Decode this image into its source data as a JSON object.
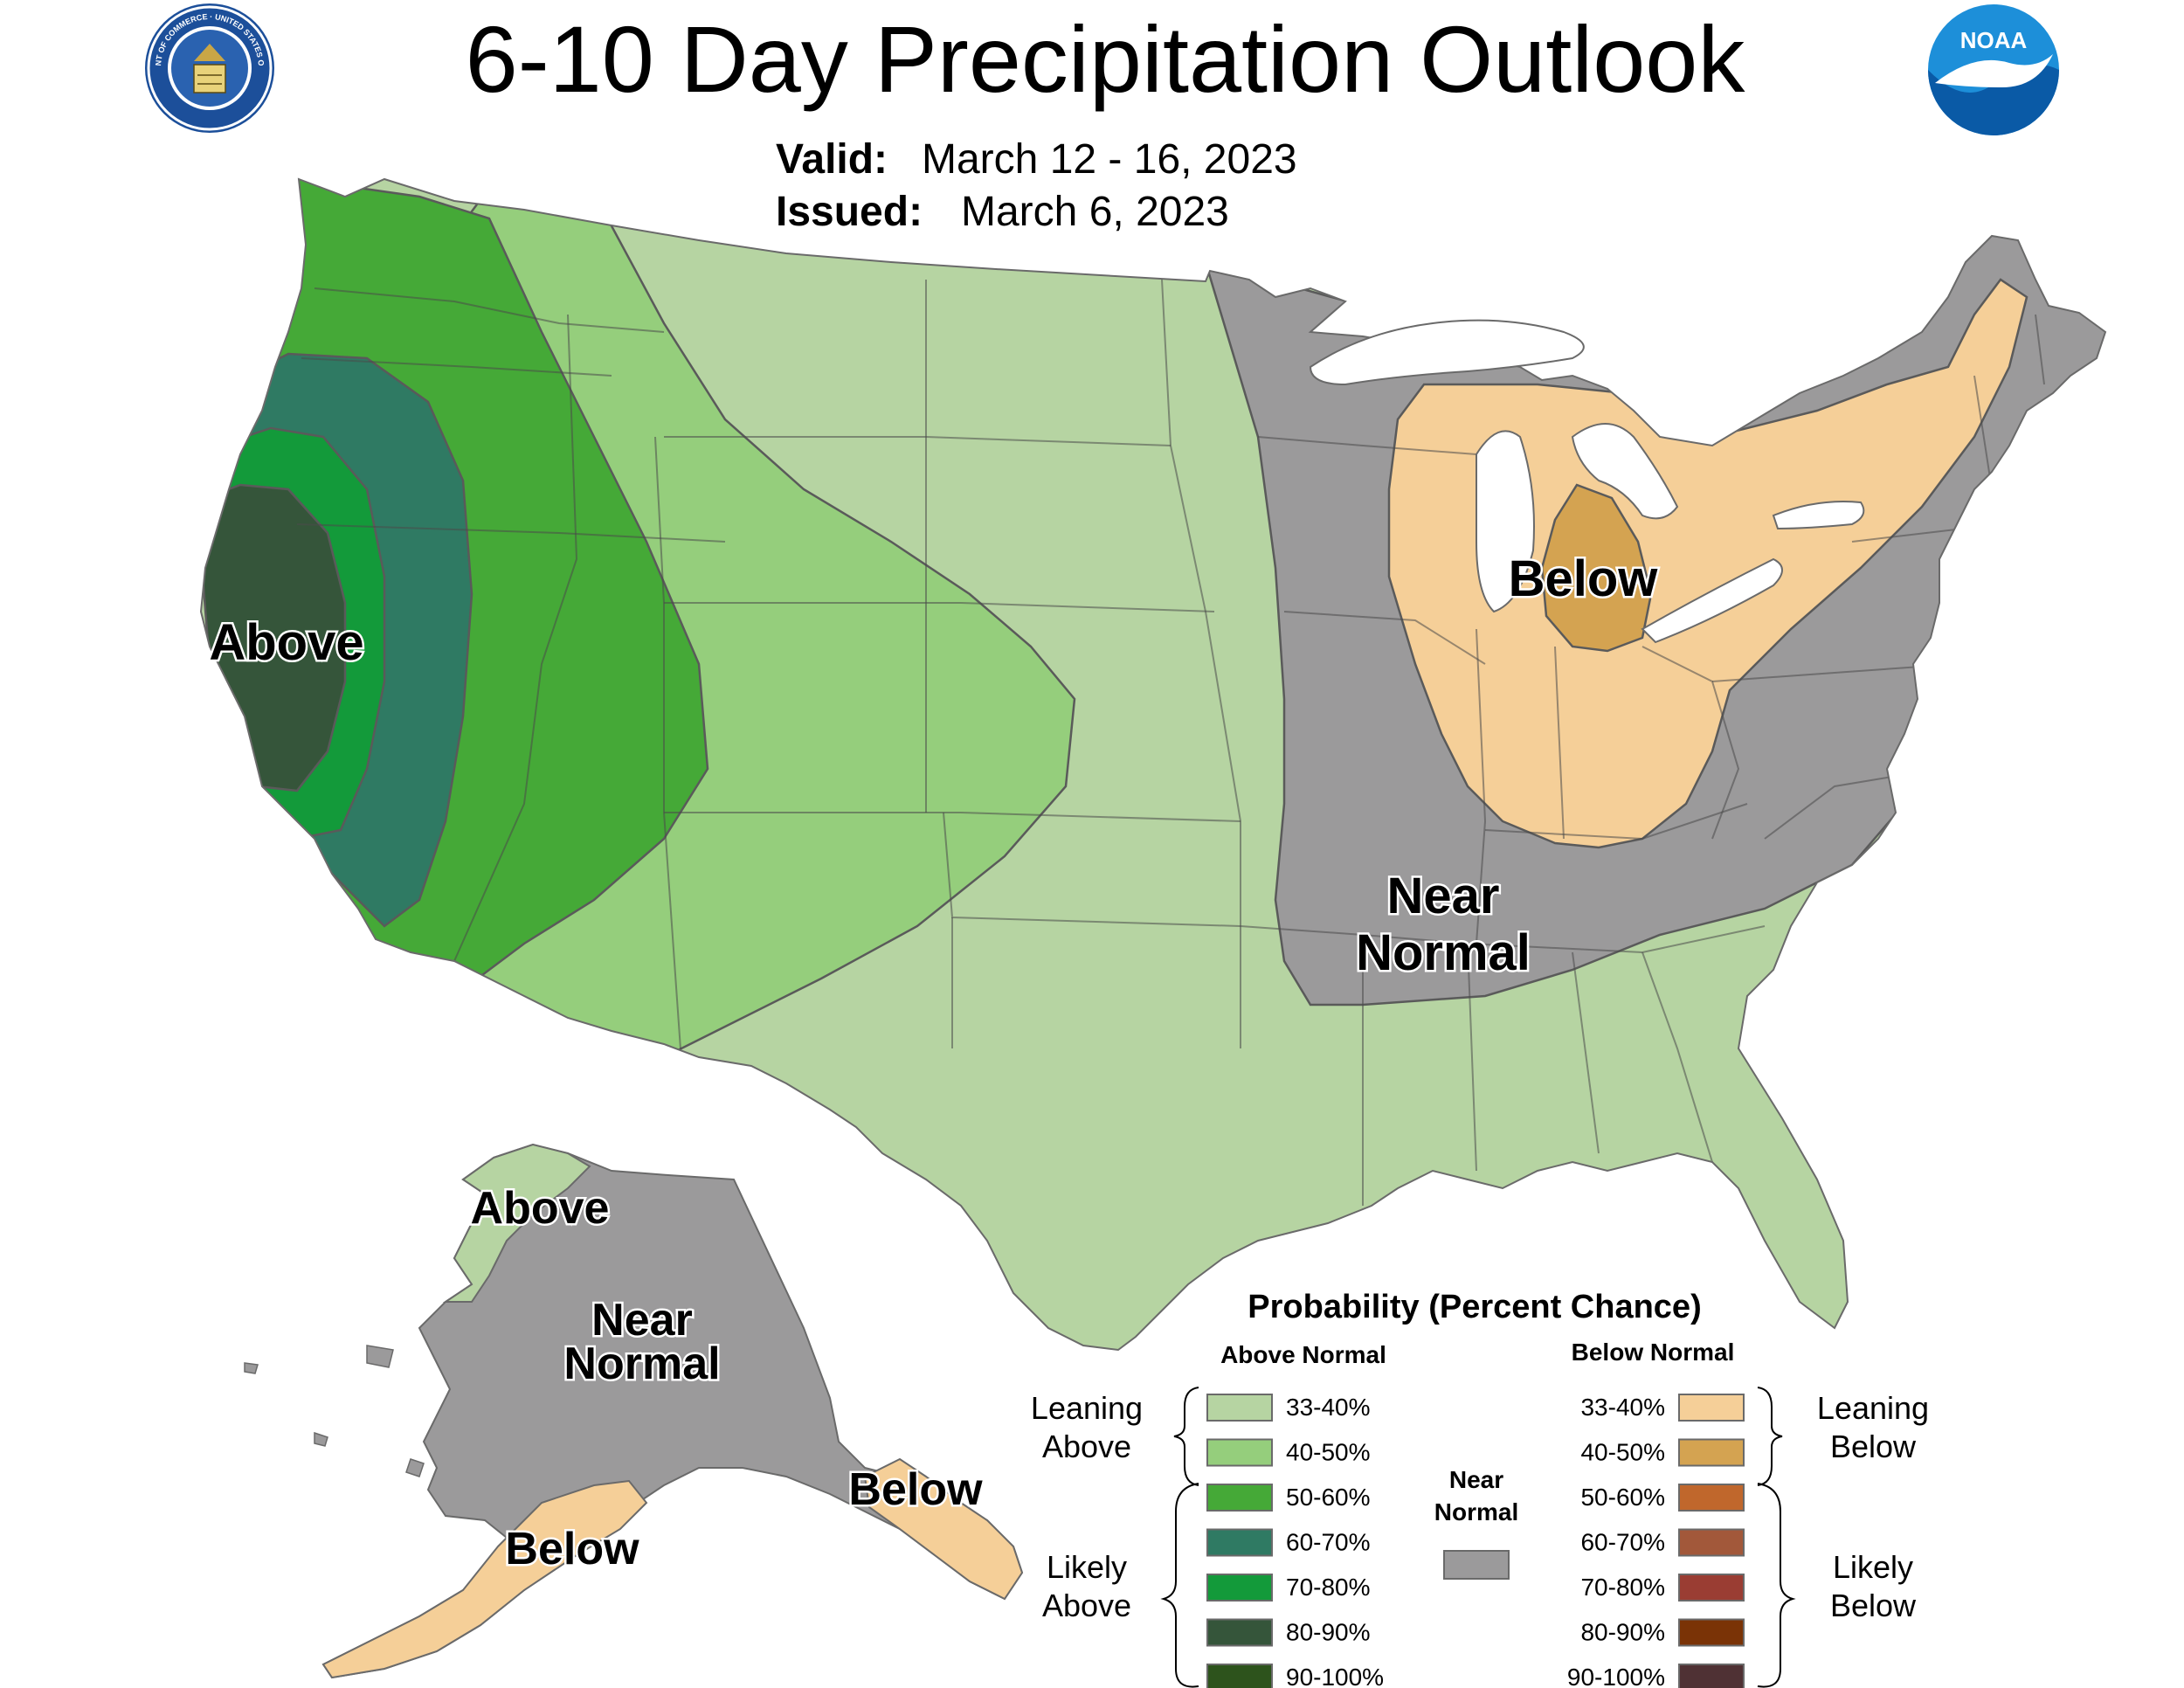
{
  "header": {
    "title": "6-10 Day Precipitation Outlook",
    "valid_label": "Valid:",
    "valid_value": "March 12 - 16, 2023",
    "issued_label": "Issued:",
    "issued_value": "March 6, 2023"
  },
  "logos": {
    "commerce_seal": "department-of-commerce-seal",
    "noaa": "noaa-logo",
    "noaa_text": "NOAA",
    "commerce_seal_text": "DEPARTMENT OF COMMERCE · UNITED STATES OF AMERICA"
  },
  "map": {
    "labels": {
      "conus_above": "Above",
      "conus_below": "Below",
      "conus_near_line1": "Near",
      "conus_near_line2": "Normal",
      "ak_above": "Above",
      "ak_near_line1": "Near",
      "ak_near_line2": "Normal",
      "ak_below_west": "Below",
      "ak_below_east": "Below"
    },
    "colors": {
      "above_33_40": "#b6d4a2",
      "above_40_50": "#95ce7c",
      "above_50_60": "#45a937",
      "above_60_70": "#2f7a63",
      "above_70_80": "#139a3a",
      "above_80_90": "#35553a",
      "above_90_100": "#2d531c",
      "near_normal": "#9b9a9b",
      "below_33_40": "#f5cf98",
      "below_40_50": "#d4a351",
      "below_50_60": "#c0672c",
      "below_60_70": "#a2583a",
      "below_70_80": "#9a3d33",
      "below_80_90": "#7a3306",
      "below_90_100": "#4f3134",
      "water": "#ffffff"
    }
  },
  "legend": {
    "title": "Probability (Percent Chance)",
    "above_header": "Above Normal",
    "below_header": "Below Normal",
    "above_rows": [
      "33-40%",
      "40-50%",
      "50-60%",
      "60-70%",
      "70-80%",
      "80-90%",
      "90-100%"
    ],
    "below_rows": [
      "33-40%",
      "40-50%",
      "50-60%",
      "60-70%",
      "70-80%",
      "80-90%",
      "90-100%"
    ],
    "leaning_above_line1": "Leaning",
    "leaning_above_line2": "Above",
    "likely_above_line1": "Likely",
    "likely_above_line2": "Above",
    "leaning_below_line1": "Leaning",
    "leaning_below_line2": "Below",
    "likely_below_line1": "Likely",
    "likely_below_line2": "Below",
    "near_line1": "Near",
    "near_line2": "Normal"
  }
}
